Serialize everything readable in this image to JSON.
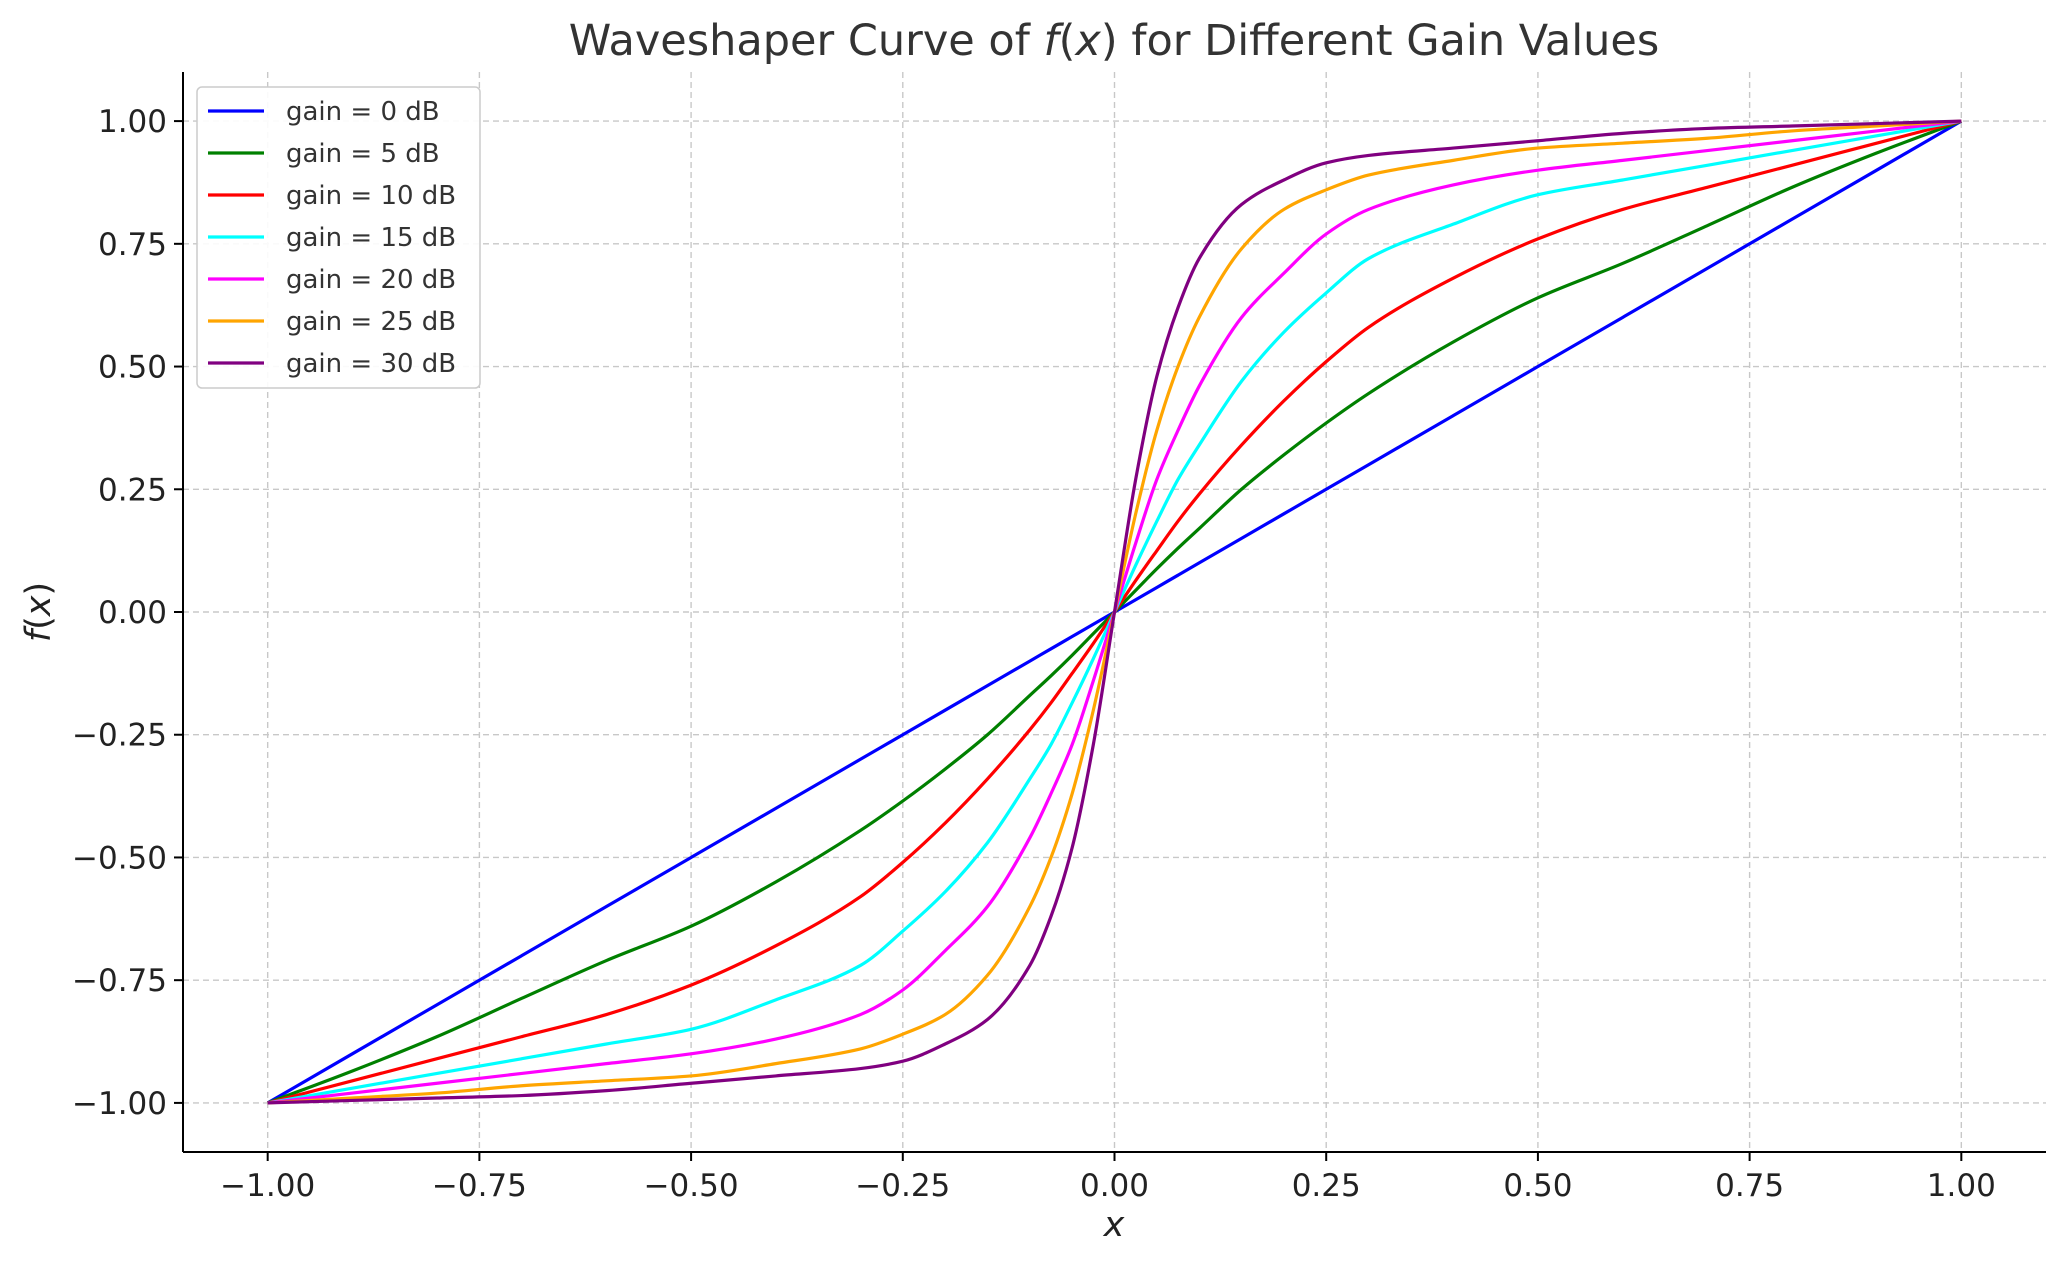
{
  "chart_data": {
    "type": "line",
    "title_prefix": "Waveshaper Curve of ",
    "title_f": "f",
    "title_open": "(",
    "title_x": "x",
    "title_suffix": ") for Different Gain Values",
    "xlabel": "x",
    "ylabel_f": "f",
    "ylabel_open": "(",
    "ylabel_x": "x",
    "ylabel_close": ")",
    "xlim": [
      -1.1,
      1.1
    ],
    "ylim": [
      -1.1,
      1.1
    ],
    "x_ticks": [
      -1.0,
      -0.75,
      -0.5,
      -0.25,
      0.0,
      0.25,
      0.5,
      0.75,
      1.0
    ],
    "x_tick_labels": [
      "−1.00",
      "−0.75",
      "−0.50",
      "−0.25",
      "0.00",
      "0.25",
      "0.50",
      "0.75",
      "1.00"
    ],
    "y_ticks": [
      -1.0,
      -0.75,
      -0.5,
      -0.25,
      0.0,
      0.25,
      0.5,
      0.75,
      1.0
    ],
    "y_tick_labels": [
      "−1.00",
      "−0.75",
      "−0.50",
      "−0.25",
      "0.00",
      "0.25",
      "0.50",
      "0.75",
      "1.00"
    ],
    "grid": true,
    "legend_position": "top-left",
    "x": [
      -1.0,
      -0.9,
      -0.8,
      -0.7,
      -0.6,
      -0.5,
      -0.4,
      -0.3,
      -0.25,
      -0.2,
      -0.15,
      -0.1,
      -0.075,
      -0.05,
      -0.025,
      0.0,
      0.025,
      0.05,
      0.075,
      0.1,
      0.15,
      0.2,
      0.25,
      0.3,
      0.4,
      0.5,
      0.6,
      0.7,
      0.8,
      0.9,
      1.0
    ],
    "series": [
      {
        "name": "gain = 0 dB",
        "color": "#0000ff",
        "values": [
          -1.0,
          -0.9,
          -0.8,
          -0.7,
          -0.6,
          -0.5,
          -0.4,
          -0.3,
          -0.25,
          -0.2,
          -0.15,
          -0.1,
          -0.075,
          -0.05,
          -0.025,
          0.0,
          0.025,
          0.05,
          0.075,
          0.1,
          0.15,
          0.2,
          0.25,
          0.3,
          0.4,
          0.5,
          0.6,
          0.7,
          0.8,
          0.9,
          1.0
        ]
      },
      {
        "name": "gain = 5 dB",
        "color": "#008000",
        "values": [
          -1.0,
          -0.935,
          -0.865,
          -0.787,
          -0.71,
          -0.64,
          -0.55,
          -0.445,
          -0.385,
          -0.32,
          -0.25,
          -0.17,
          -0.13,
          -0.088,
          -0.044,
          0.0,
          0.044,
          0.088,
          0.13,
          0.17,
          0.25,
          0.32,
          0.385,
          0.445,
          0.55,
          0.64,
          0.71,
          0.787,
          0.865,
          0.935,
          1.0
        ]
      },
      {
        "name": "gain = 10 dB",
        "color": "#ff0000",
        "values": [
          -1.0,
          -0.955,
          -0.91,
          -0.865,
          -0.82,
          -0.76,
          -0.68,
          -0.58,
          -0.51,
          -0.43,
          -0.34,
          -0.24,
          -0.185,
          -0.125,
          -0.064,
          0.0,
          0.064,
          0.125,
          0.185,
          0.24,
          0.34,
          0.43,
          0.51,
          0.58,
          0.68,
          0.76,
          0.82,
          0.865,
          0.91,
          0.955,
          1.0
        ]
      },
      {
        "name": "gain = 15 dB",
        "color": "#00ffff",
        "values": [
          -1.0,
          -0.97,
          -0.94,
          -0.91,
          -0.88,
          -0.85,
          -0.79,
          -0.72,
          -0.65,
          -0.57,
          -0.47,
          -0.34,
          -0.27,
          -0.185,
          -0.095,
          0.0,
          0.095,
          0.185,
          0.27,
          0.34,
          0.47,
          0.57,
          0.65,
          0.72,
          0.79,
          0.85,
          0.88,
          0.91,
          0.94,
          0.97,
          1.0
        ]
      },
      {
        "name": "gain = 20 dB",
        "color": "#ff00ff",
        "values": [
          -1.0,
          -0.98,
          -0.96,
          -0.94,
          -0.92,
          -0.9,
          -0.87,
          -0.82,
          -0.77,
          -0.69,
          -0.6,
          -0.46,
          -0.37,
          -0.27,
          -0.14,
          0.0,
          0.14,
          0.27,
          0.37,
          0.46,
          0.6,
          0.69,
          0.77,
          0.82,
          0.87,
          0.9,
          0.92,
          0.94,
          0.96,
          0.98,
          1.0
        ]
      },
      {
        "name": "gain = 25 dB",
        "color": "#ffa500",
        "values": [
          -1.0,
          -0.99,
          -0.98,
          -0.965,
          -0.955,
          -0.945,
          -0.92,
          -0.89,
          -0.86,
          -0.82,
          -0.74,
          -0.6,
          -0.5,
          -0.37,
          -0.2,
          0.0,
          0.2,
          0.37,
          0.5,
          0.6,
          0.74,
          0.82,
          0.86,
          0.89,
          0.92,
          0.945,
          0.955,
          0.965,
          0.98,
          0.99,
          1.0
        ]
      },
      {
        "name": "gain = 30 dB",
        "color": "#800080",
        "values": [
          -1.0,
          -0.995,
          -0.99,
          -0.985,
          -0.975,
          -0.96,
          -0.945,
          -0.93,
          -0.915,
          -0.88,
          -0.83,
          -0.72,
          -0.62,
          -0.48,
          -0.27,
          0.0,
          0.27,
          0.48,
          0.62,
          0.72,
          0.83,
          0.88,
          0.915,
          0.93,
          0.945,
          0.96,
          0.975,
          0.985,
          0.99,
          0.995,
          1.0
        ]
      }
    ]
  }
}
